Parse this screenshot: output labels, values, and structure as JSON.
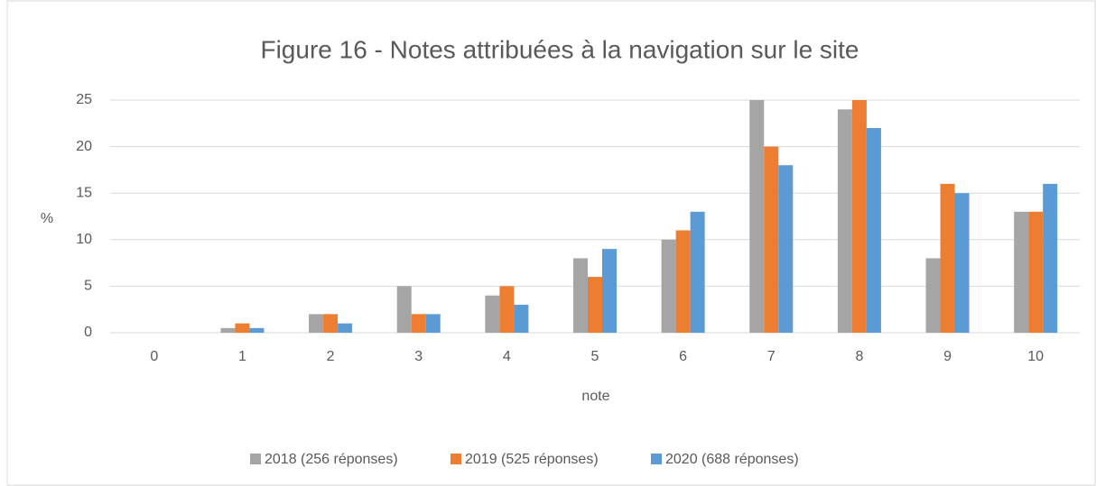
{
  "chart_data": {
    "type": "bar",
    "title": "Figure 16 - Notes attribuées à la navigation sur le site",
    "x_label": "note",
    "y_label": "%",
    "categories": [
      "0",
      "1",
      "2",
      "3",
      "4",
      "5",
      "6",
      "7",
      "8",
      "9",
      "10"
    ],
    "series": [
      {
        "name": "2018 (256 réponses)",
        "color": "#a5a5a5",
        "values": [
          0,
          0.5,
          2,
          5,
          4,
          8,
          10,
          25,
          24,
          8,
          13
        ]
      },
      {
        "name": "2019 (525 réponses)",
        "color": "#ed7d31",
        "values": [
          0,
          1,
          2,
          2,
          5,
          6,
          11,
          20,
          25,
          16,
          13
        ]
      },
      {
        "name": "2020 (688 réponses)",
        "color": "#5b9bd5",
        "values": [
          0,
          0.5,
          1,
          2,
          3,
          9,
          13,
          18,
          22,
          15,
          16
        ]
      }
    ],
    "ylim": [
      0,
      25
    ],
    "yticks": [
      0,
      5,
      10,
      15,
      20,
      25
    ],
    "grid": true,
    "legend": "bottom"
  }
}
